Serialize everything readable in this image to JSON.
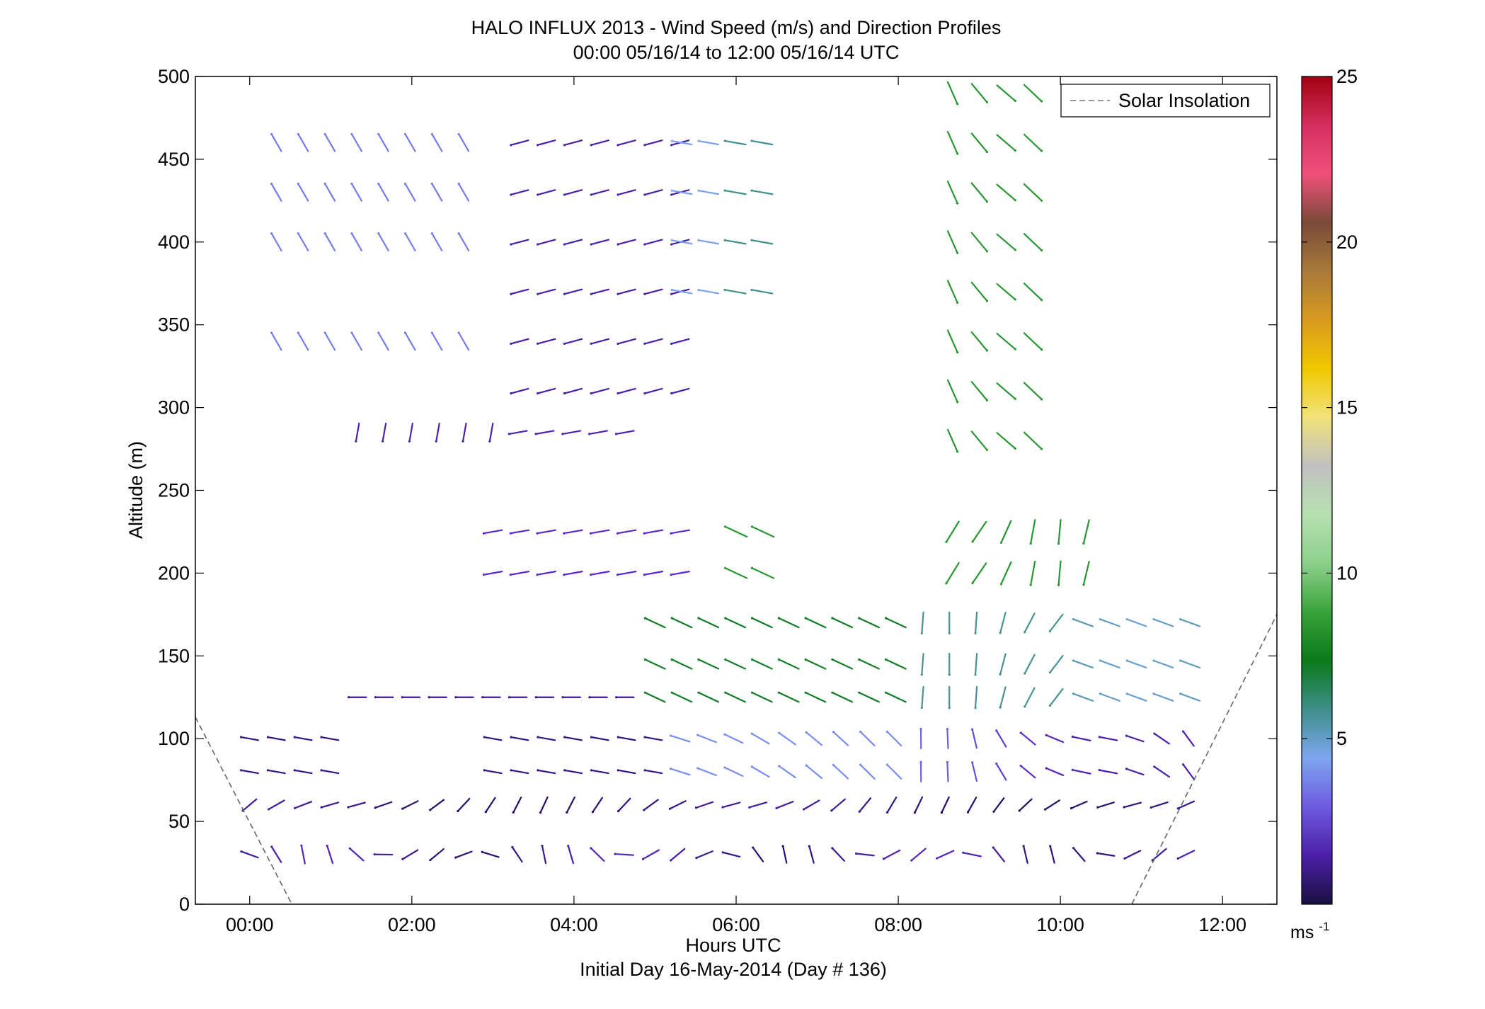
{
  "chart_data": {
    "type": "scatter",
    "subtype": "wind-barb-profile",
    "title": "HALO INFLUX 2013 - Wind Speed (m/s) and Direction Profiles",
    "subtitle": "00:00 05/16/14 to 12:00 05/16/14  UTC",
    "xlabel": "Hours UTC",
    "xlabel2": "Initial Day 16-May-2014 (Day # 136)",
    "ylabel": "Altitude (m)",
    "xlim": [
      -0.67,
      12.67
    ],
    "ylim": [
      0,
      500
    ],
    "x_ticks": [
      0,
      2,
      4,
      6,
      8,
      10,
      12
    ],
    "x_tick_labels": [
      "00:00",
      "02:00",
      "04:00",
      "06:00",
      "08:00",
      "10:00",
      "12:00"
    ],
    "y_ticks": [
      0,
      50,
      100,
      150,
      200,
      250,
      300,
      350,
      400,
      450,
      500
    ],
    "y_tick_labels": [
      "0",
      "50",
      "100",
      "150",
      "200",
      "250",
      "300",
      "350",
      "400",
      "450",
      "500"
    ],
    "legend": {
      "entries": [
        "Solar Insolation"
      ],
      "placement": "top-right"
    },
    "colorbar": {
      "min": 0,
      "max": 25,
      "ticks": [
        5,
        10,
        15,
        20,
        25
      ],
      "tick_labels": [
        "5",
        "10",
        "15",
        "20",
        "25"
      ],
      "unit_label": "ms",
      "unit_exponent": "-1",
      "colors": [
        "#1a1040",
        "#4b1fa8",
        "#6e5be0",
        "#7ea6f0",
        "#3f8f8a",
        "#0a7a1a",
        "#3aa33a",
        "#8cd08c",
        "#b7e0b0",
        "#c0c0c0",
        "#f2e27a",
        "#f0c800",
        "#d99a20",
        "#a87a3a",
        "#7a4a3a",
        "#f0507a",
        "#d43060",
        "#a00010"
      ]
    },
    "solar_insolation": [
      {
        "name": "morning",
        "x": [
          -0.67,
          0.52
        ],
        "y": [
          113,
          0
        ]
      },
      {
        "name": "evening",
        "x": [
          10.88,
          12.67
        ],
        "y": [
          0,
          175
        ]
      }
    ],
    "series": [
      {
        "name": "wind_barbs",
        "columns": [
          "hour",
          "altitude_m",
          "speed_ms",
          "dir_deg"
        ],
        "values": []
      }
    ]
  }
}
